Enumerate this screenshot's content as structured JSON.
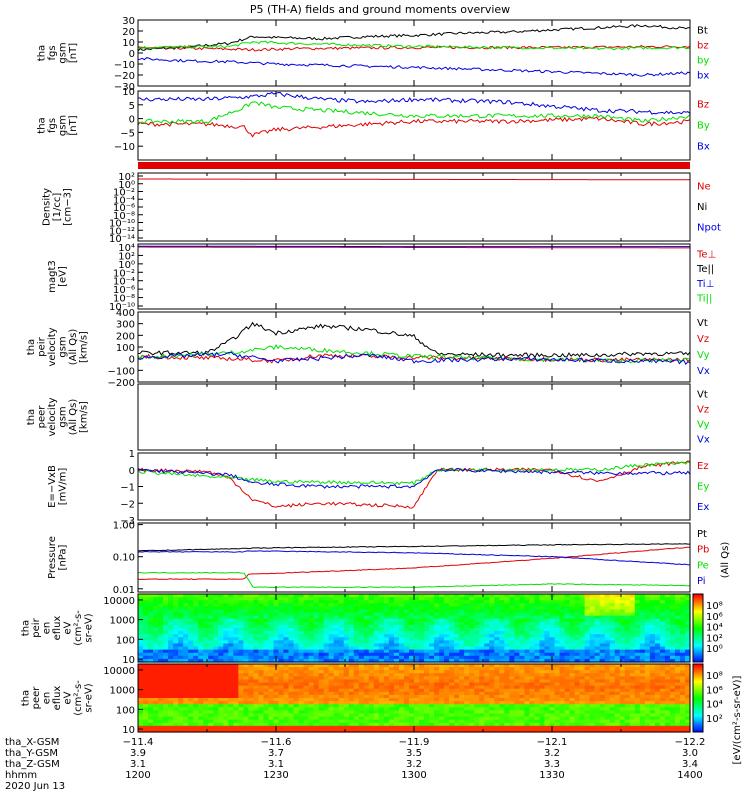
{
  "title": "P5 (TH-A) fields and ground moments overview",
  "colors": {
    "black": "#000000",
    "red": "#e00000",
    "green": "#00e000",
    "blue": "#0000e0"
  },
  "chart_data": [
    {
      "type": "line",
      "panel": "fgs-gsm",
      "ylabel_lines": [
        "tha",
        "fgs",
        "gsm",
        "[nT]"
      ],
      "ylim": [
        -30,
        30
      ],
      "ytick_labels": [
        "30",
        "20",
        "10",
        "0",
        "−10",
        "−20",
        "−30"
      ],
      "yticks": [
        30,
        20,
        10,
        0,
        -10,
        -20,
        -30
      ],
      "series": [
        {
          "name": "Bt",
          "color": "black",
          "x": [
            1200,
            1210,
            1215,
            1220,
            1225,
            1230,
            1240,
            1250,
            1300,
            1310,
            1320,
            1330,
            1340,
            1350,
            1400
          ],
          "y": [
            3,
            5,
            7,
            9,
            15,
            14,
            13,
            15,
            16,
            18,
            19,
            21,
            23,
            25,
            22
          ]
        },
        {
          "name": "bz",
          "color": "red",
          "x": [
            1200,
            1215,
            1225,
            1235,
            1300,
            1330,
            1400
          ],
          "y": [
            5,
            4,
            3,
            4,
            5,
            5,
            6
          ]
        },
        {
          "name": "by",
          "color": "green",
          "x": [
            1200,
            1220,
            1225,
            1240,
            1300,
            1340,
            1400
          ],
          "y": [
            5,
            6,
            10,
            8,
            6,
            4,
            5
          ]
        },
        {
          "name": "bx",
          "color": "blue",
          "x": [
            1200,
            1210,
            1220,
            1230,
            1240,
            1300,
            1330,
            1350,
            1400
          ],
          "y": [
            -5,
            -7,
            -8,
            -10,
            -11,
            -13,
            -17,
            -20,
            -18
          ]
        }
      ],
      "legend": [
        {
          "label": "Bt",
          "color": "black"
        },
        {
          "label": "bz",
          "color": "red"
        },
        {
          "label": "by",
          "color": "green"
        },
        {
          "label": "bx",
          "color": "blue"
        }
      ]
    },
    {
      "type": "line",
      "panel": "fgs-gsm-zoom",
      "ylabel_lines": [
        "tha",
        "fgs",
        "gsm",
        "[nT]"
      ],
      "ylim": [
        -15,
        10
      ],
      "ytick_labels": [
        "10",
        "5",
        "0",
        "−5",
        "−10"
      ],
      "yticks": [
        10,
        5,
        0,
        -5,
        -10
      ],
      "series": [
        {
          "name": "Bz",
          "color": "red",
          "x": [
            1200,
            1215,
            1223,
            1225,
            1230,
            1240,
            1250,
            1300,
            1320,
            1340,
            1350,
            1400
          ],
          "y": [
            -2,
            -2,
            -3,
            -6,
            -4,
            -3,
            -2,
            -1,
            -1,
            0,
            -2,
            -1
          ]
        },
        {
          "name": "By",
          "color": "green",
          "x": [
            1200,
            1215,
            1223,
            1225,
            1230,
            1240,
            1300,
            1320,
            1340,
            1350,
            1400
          ],
          "y": [
            -1,
            -1,
            4,
            6,
            4,
            3,
            1,
            1,
            1,
            -1,
            1
          ]
        },
        {
          "name": "Bx",
          "color": "blue",
          "x": [
            1200,
            1215,
            1225,
            1230,
            1240,
            1250,
            1300,
            1320,
            1340,
            1400
          ],
          "y": [
            7,
            7,
            8,
            9,
            7,
            6,
            7,
            6,
            3,
            2
          ]
        }
      ],
      "legend": [
        {
          "label": "Bz",
          "color": "red"
        },
        {
          "label": "By",
          "color": "green"
        },
        {
          "label": "Bx",
          "color": "blue"
        }
      ]
    },
    {
      "type": "line",
      "panel": "density",
      "scale": "log",
      "ylabel_lines": [
        "Density",
        "[1/cc]",
        "[cm−3]"
      ],
      "ylim_log10": [
        -15,
        2
      ],
      "ytick_labels": [
        "10²",
        "10⁰",
        "10⁻²",
        "10⁻⁴",
        "10⁻⁶",
        "10⁻⁸",
        "10⁻¹⁰",
        "10⁻¹²",
        "10⁻¹⁴"
      ],
      "series": [
        {
          "name": "Ne",
          "color": "red",
          "x": [
            1200,
            1300,
            1400
          ],
          "y_log10": [
            0.5,
            0.4,
            0.3
          ]
        }
      ],
      "legend": [
        {
          "label": "Ne",
          "color": "red"
        },
        {
          "label": "Ni",
          "color": "black"
        },
        {
          "label": "Npot",
          "color": "blue"
        }
      ]
    },
    {
      "type": "line",
      "panel": "temperature",
      "scale": "log",
      "ylabel_lines": [
        "magt3",
        "[eV]"
      ],
      "ylim_log10": [
        -10.5,
        4.5
      ],
      "ytick_labels": [
        "10⁴",
        "10²",
        "10⁰",
        "10⁻²",
        "10⁻⁴",
        "10⁻⁶",
        "10⁻⁸",
        "10⁻¹⁰"
      ],
      "series": [
        {
          "name": "Te⊥",
          "color": "red",
          "x": [
            1200,
            1300,
            1400
          ],
          "y_log10": [
            3.8,
            3.7,
            3.6
          ]
        },
        {
          "name": "Ti⊥",
          "color": "blue",
          "x": [
            1200,
            1300,
            1400
          ],
          "y_log10": [
            4.0,
            3.9,
            3.9
          ]
        }
      ],
      "legend": [
        {
          "label": "Te⊥",
          "color": "red"
        },
        {
          "label": "Te||",
          "color": "black"
        },
        {
          "label": "Ti⊥",
          "color": "blue"
        },
        {
          "label": "Ti||",
          "color": "green"
        }
      ]
    },
    {
      "type": "line",
      "panel": "peir-velocity",
      "ylabel_lines": [
        "tha",
        "peir",
        "velocity",
        "gsm",
        "(All Qs)",
        "[km/s]"
      ],
      "ylim": [
        -200,
        400
      ],
      "ytick_labels": [
        "400",
        "300",
        "200",
        "100",
        "0",
        "−100",
        "−200"
      ],
      "yticks": [
        400,
        300,
        200,
        100,
        0,
        -100,
        -200
      ],
      "series": [
        {
          "name": "Vt",
          "color": "black",
          "x": [
            1200,
            1215,
            1220,
            1225,
            1230,
            1240,
            1250,
            1300,
            1305,
            1320,
            1340,
            1350,
            1400
          ],
          "y": [
            50,
            50,
            150,
            300,
            220,
            280,
            250,
            190,
            40,
            30,
            30,
            45,
            40
          ]
        },
        {
          "name": "Vz",
          "color": "red",
          "x": [
            1200,
            1220,
            1230,
            1240,
            1300,
            1320,
            1340,
            1400
          ],
          "y": [
            20,
            0,
            -20,
            30,
            10,
            0,
            -10,
            -10
          ]
        },
        {
          "name": "Vy",
          "color": "green",
          "x": [
            1200,
            1220,
            1230,
            1300,
            1320,
            1345,
            1400
          ],
          "y": [
            10,
            50,
            100,
            20,
            0,
            -20,
            -10
          ]
        },
        {
          "name": "Vx",
          "color": "blue",
          "x": [
            1200,
            1220,
            1230,
            1250,
            1300,
            1320,
            1400
          ],
          "y": [
            10,
            40,
            -20,
            30,
            -20,
            0,
            -30
          ]
        }
      ],
      "legend": [
        {
          "label": "Vt",
          "color": "black"
        },
        {
          "label": "Vz",
          "color": "red"
        },
        {
          "label": "Vy",
          "color": "green"
        },
        {
          "label": "Vx",
          "color": "blue"
        }
      ]
    },
    {
      "type": "line",
      "panel": "peer-velocity",
      "ylabel_lines": [
        "tha",
        "peer",
        "velocity",
        "gsm",
        "(All Qs)",
        "[km/s]"
      ],
      "series": [],
      "legend": [
        {
          "label": "Vt",
          "color": "black"
        },
        {
          "label": "Vz",
          "color": "red"
        },
        {
          "label": "Vy",
          "color": "green"
        },
        {
          "label": "Vx",
          "color": "blue"
        }
      ]
    },
    {
      "type": "line",
      "panel": "efield",
      "ylabel_lines": [
        "E=−VxB",
        "[mV/m]"
      ],
      "ylim": [
        -3,
        1
      ],
      "ytick_labels": [
        "1",
        "0",
        "−1",
        "−2",
        "−3"
      ],
      "yticks": [
        1,
        0,
        -1,
        -2,
        -3
      ],
      "series": [
        {
          "name": "Ez",
          "color": "red",
          "x": [
            1200,
            1215,
            1220,
            1225,
            1230,
            1240,
            1300,
            1305,
            1330,
            1340,
            1350,
            1400
          ],
          "y": [
            0,
            -0.1,
            -0.5,
            -1.8,
            -2.2,
            -2,
            -2.2,
            0,
            0,
            -0.7,
            0.2,
            0.5
          ]
        },
        {
          "name": "Ey",
          "color": "green",
          "x": [
            1200,
            1220,
            1230,
            1300,
            1305,
            1340,
            1350,
            1400
          ],
          "y": [
            -0.1,
            -0.5,
            -0.7,
            -0.8,
            0,
            0,
            0.3,
            0.4
          ]
        },
        {
          "name": "Ex",
          "color": "blue",
          "x": [
            1200,
            1220,
            1225,
            1240,
            1300,
            1305,
            1340,
            1400
          ],
          "y": [
            0,
            -0.3,
            -0.8,
            -1,
            -1,
            0,
            -0.2,
            -0.2
          ]
        }
      ],
      "legend": [
        {
          "label": "Ez",
          "color": "red"
        },
        {
          "label": "Ey",
          "color": "green"
        },
        {
          "label": "Ex",
          "color": "blue"
        }
      ]
    },
    {
      "type": "line",
      "panel": "pressure",
      "scale": "log",
      "ylabel_lines": [
        "Pressure",
        "[nPa]"
      ],
      "ylim_log10": [
        -2.1,
        0.05
      ],
      "ytick_labels": [
        "1.00",
        "0.10",
        "0.01"
      ],
      "yticks_log10": [
        0,
        -1,
        -2
      ],
      "series": [
        {
          "name": "Pt",
          "color": "black",
          "x": [
            1200,
            1230,
            1300,
            1330,
            1400
          ],
          "y_log10": [
            -0.82,
            -0.72,
            -0.68,
            -0.63,
            -0.6
          ]
        },
        {
          "name": "Pb",
          "color": "red",
          "x": [
            1200,
            1223,
            1224,
            1300,
            1330,
            1400
          ],
          "y_log10": [
            -1.7,
            -1.7,
            -1.55,
            -1.35,
            -1.05,
            -0.7
          ]
        },
        {
          "name": "Pe",
          "color": "green",
          "x": [
            1200,
            1223,
            1225,
            1300,
            1330,
            1400
          ],
          "y_log10": [
            -1.5,
            -1.5,
            -1.95,
            -1.95,
            -1.85,
            -1.9
          ]
        },
        {
          "name": "Pi",
          "color": "blue",
          "x": [
            1200,
            1223,
            1224,
            1300,
            1330,
            1400
          ],
          "y_log10": [
            -0.85,
            -0.85,
            -0.82,
            -0.88,
            -1.0,
            -1.25
          ]
        }
      ],
      "legend": [
        {
          "label": "Pt",
          "color": "black"
        },
        {
          "label": "Pb",
          "color": "red"
        },
        {
          "label": "Pe",
          "color": "green"
        },
        {
          "label": "Pi",
          "color": "blue"
        }
      ]
    },
    {
      "type": "heatmap",
      "panel": "peir-spectrogram",
      "ylabel_lines": [
        "tha",
        "peir",
        "en",
        "eflux",
        "eV",
        "(cm²-s-",
        "sr-eV)"
      ],
      "ytick_labels": [
        "10000",
        "1000",
        "100",
        "10"
      ],
      "yticks_log10": [
        4,
        3,
        2,
        1
      ]
    },
    {
      "type": "heatmap",
      "panel": "peer-spectrogram",
      "ylabel_lines": [
        "tha",
        "peer",
        "en",
        "eflux",
        "eV",
        "(cm²-s-",
        "sr-eV)"
      ],
      "ytick_labels": [
        "10000",
        "1000",
        "100",
        "10"
      ],
      "yticks_log10": [
        4,
        3,
        2,
        1
      ]
    }
  ],
  "right_labels": [
    "(All Qs)"
  ],
  "colorbar_1": {
    "tick_labels": [
      "10⁸",
      "10⁶",
      "10⁴",
      "10²",
      "10⁰"
    ]
  },
  "colorbar_2": {
    "tick_labels": [
      "10⁸",
      "10⁶",
      "10⁴",
      "10²"
    ]
  },
  "colorbar_title": "[eV/(cm²-s-sr-eV)]",
  "x_axis": {
    "range_hhmm": [
      1200,
      1400
    ],
    "row_labels": [
      "tha_X-GSM",
      "tha_Y-GSM",
      "tha_Z-GSM",
      "hhmm",
      "2020 Jun 13"
    ],
    "rows": [
      [
        "−11.4",
        "−11.6",
        "−11.9",
        "−12.1",
        "−12.2"
      ],
      [
        "3.9",
        "3.7",
        "3.5",
        "3.2",
        "3.0"
      ],
      [
        "3.1",
        "3.1",
        "3.2",
        "3.3",
        "3.4"
      ],
      [
        "1200",
        "1230",
        "1300",
        "1330",
        "1400"
      ]
    ]
  }
}
